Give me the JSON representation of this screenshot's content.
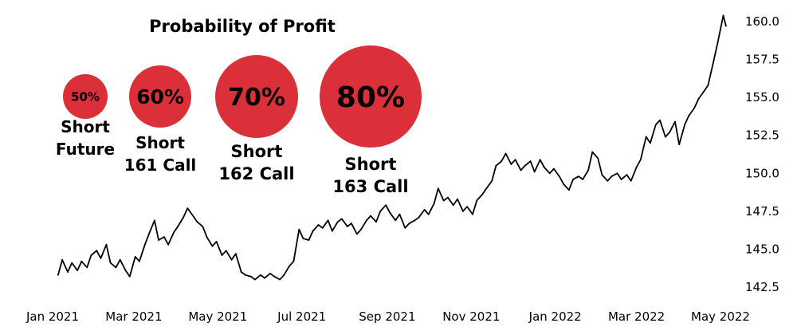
{
  "chart_data": {
    "type": "line",
    "title": "Probability of Profit",
    "xlabel": "",
    "ylabel": "",
    "ylim": [
      142.0,
      160.8
    ],
    "y_ticks": [
      "142.5",
      "145.0",
      "147.5",
      "150.0",
      "152.5",
      "155.0",
      "157.5",
      "160.0"
    ],
    "x_ticks": [
      "Jan 2021",
      "Mar 2021",
      "May 2021",
      "Jul 2021",
      "Sep 2021",
      "Nov 2021",
      "Jan 2022",
      "Mar 2022",
      "May 2022"
    ],
    "grid": false,
    "y_axis_side": "right",
    "line_color": "#000000",
    "series": [
      {
        "points": [
          [
            "2021-01-05",
            143.3
          ],
          [
            "2021-01-08",
            144.3
          ],
          [
            "2021-01-12",
            143.5
          ],
          [
            "2021-01-15",
            144.1
          ],
          [
            "2021-01-19",
            143.6
          ],
          [
            "2021-01-22",
            144.2
          ],
          [
            "2021-01-26",
            143.8
          ],
          [
            "2021-01-29",
            144.6
          ],
          [
            "2021-02-02",
            144.9
          ],
          [
            "2021-02-05",
            144.4
          ],
          [
            "2021-02-09",
            145.3
          ],
          [
            "2021-02-12",
            144.1
          ],
          [
            "2021-02-16",
            143.8
          ],
          [
            "2021-02-19",
            144.3
          ],
          [
            "2021-02-23",
            143.6
          ],
          [
            "2021-02-26",
            143.2
          ],
          [
            "2021-03-02",
            144.5
          ],
          [
            "2021-03-05",
            144.2
          ],
          [
            "2021-03-09",
            145.3
          ],
          [
            "2021-03-12",
            146.0
          ],
          [
            "2021-03-16",
            146.9
          ],
          [
            "2021-03-19",
            145.6
          ],
          [
            "2021-03-23",
            145.8
          ],
          [
            "2021-03-26",
            145.3
          ],
          [
            "2021-03-30",
            146.1
          ],
          [
            "2021-04-02",
            146.5
          ],
          [
            "2021-04-06",
            147.1
          ],
          [
            "2021-04-09",
            147.7
          ],
          [
            "2021-04-13",
            147.2
          ],
          [
            "2021-04-16",
            146.8
          ],
          [
            "2021-04-20",
            146.5
          ],
          [
            "2021-04-23",
            145.8
          ],
          [
            "2021-04-27",
            145.2
          ],
          [
            "2021-04-30",
            145.5
          ],
          [
            "2021-05-04",
            144.6
          ],
          [
            "2021-05-07",
            144.9
          ],
          [
            "2021-05-11",
            144.3
          ],
          [
            "2021-05-14",
            144.7
          ],
          [
            "2021-05-18",
            143.5
          ],
          [
            "2021-05-21",
            143.3
          ],
          [
            "2021-05-25",
            143.2
          ],
          [
            "2021-05-28",
            143.0
          ],
          [
            "2021-06-01",
            143.3
          ],
          [
            "2021-06-04",
            143.1
          ],
          [
            "2021-06-08",
            143.4
          ],
          [
            "2021-06-11",
            143.2
          ],
          [
            "2021-06-15",
            143.0
          ],
          [
            "2021-06-18",
            143.3
          ],
          [
            "2021-06-22",
            143.9
          ],
          [
            "2021-06-25",
            144.2
          ],
          [
            "2021-06-29",
            146.3
          ],
          [
            "2021-07-02",
            145.7
          ],
          [
            "2021-07-06",
            145.6
          ],
          [
            "2021-07-09",
            146.2
          ],
          [
            "2021-07-13",
            146.6
          ],
          [
            "2021-07-16",
            146.4
          ],
          [
            "2021-07-20",
            146.9
          ],
          [
            "2021-07-23",
            146.2
          ],
          [
            "2021-07-27",
            146.8
          ],
          [
            "2021-07-30",
            147.0
          ],
          [
            "2021-08-03",
            146.5
          ],
          [
            "2021-08-06",
            146.7
          ],
          [
            "2021-08-10",
            146.0
          ],
          [
            "2021-08-13",
            146.3
          ],
          [
            "2021-08-17",
            146.9
          ],
          [
            "2021-08-20",
            147.2
          ],
          [
            "2021-08-24",
            146.8
          ],
          [
            "2021-08-27",
            147.5
          ],
          [
            "2021-08-31",
            147.9
          ],
          [
            "2021-09-03",
            147.4
          ],
          [
            "2021-09-07",
            146.9
          ],
          [
            "2021-09-10",
            147.3
          ],
          [
            "2021-09-14",
            146.4
          ],
          [
            "2021-09-17",
            146.7
          ],
          [
            "2021-09-21",
            146.9
          ],
          [
            "2021-09-24",
            147.1
          ],
          [
            "2021-09-28",
            147.6
          ],
          [
            "2021-10-01",
            147.3
          ],
          [
            "2021-10-05",
            148.0
          ],
          [
            "2021-10-08",
            149.0
          ],
          [
            "2021-10-12",
            148.2
          ],
          [
            "2021-10-15",
            148.4
          ],
          [
            "2021-10-19",
            147.9
          ],
          [
            "2021-10-22",
            148.3
          ],
          [
            "2021-10-26",
            147.5
          ],
          [
            "2021-10-29",
            147.8
          ],
          [
            "2021-11-02",
            147.3
          ],
          [
            "2021-11-05",
            148.2
          ],
          [
            "2021-11-09",
            148.6
          ],
          [
            "2021-11-12",
            149.0
          ],
          [
            "2021-11-16",
            149.5
          ],
          [
            "2021-11-19",
            150.5
          ],
          [
            "2021-11-23",
            150.8
          ],
          [
            "2021-11-26",
            151.3
          ],
          [
            "2021-11-30",
            150.6
          ],
          [
            "2021-12-03",
            150.9
          ],
          [
            "2021-12-07",
            150.2
          ],
          [
            "2021-12-10",
            150.5
          ],
          [
            "2021-12-14",
            150.8
          ],
          [
            "2021-12-17",
            150.1
          ],
          [
            "2021-12-21",
            150.9
          ],
          [
            "2021-12-24",
            150.4
          ],
          [
            "2021-12-28",
            150.0
          ],
          [
            "2021-12-31",
            150.3
          ],
          [
            "2022-01-04",
            149.8
          ],
          [
            "2022-01-07",
            149.3
          ],
          [
            "2022-01-11",
            148.9
          ],
          [
            "2022-01-14",
            149.6
          ],
          [
            "2022-01-18",
            149.8
          ],
          [
            "2022-01-21",
            149.6
          ],
          [
            "2022-01-25",
            150.2
          ],
          [
            "2022-01-28",
            151.4
          ],
          [
            "2022-02-01",
            151.0
          ],
          [
            "2022-02-04",
            149.9
          ],
          [
            "2022-02-08",
            149.5
          ],
          [
            "2022-02-11",
            149.8
          ],
          [
            "2022-02-15",
            150.0
          ],
          [
            "2022-02-18",
            149.6
          ],
          [
            "2022-02-22",
            149.9
          ],
          [
            "2022-02-25",
            149.5
          ],
          [
            "2022-03-01",
            150.4
          ],
          [
            "2022-03-04",
            150.9
          ],
          [
            "2022-03-08",
            152.4
          ],
          [
            "2022-03-11",
            152.0
          ],
          [
            "2022-03-15",
            153.2
          ],
          [
            "2022-03-18",
            153.5
          ],
          [
            "2022-03-22",
            152.4
          ],
          [
            "2022-03-25",
            152.7
          ],
          [
            "2022-03-29",
            153.4
          ],
          [
            "2022-04-01",
            151.9
          ],
          [
            "2022-04-05",
            153.2
          ],
          [
            "2022-04-08",
            153.8
          ],
          [
            "2022-04-12",
            154.3
          ],
          [
            "2022-04-15",
            154.9
          ],
          [
            "2022-04-19",
            155.4
          ],
          [
            "2022-04-22",
            155.8
          ],
          [
            "2022-04-26",
            157.4
          ],
          [
            "2022-04-29",
            158.6
          ],
          [
            "2022-05-03",
            160.4
          ],
          [
            "2022-05-05",
            159.7
          ]
        ]
      }
    ],
    "bubbles": [
      {
        "pct": "50%",
        "lines": [
          "Short",
          "Future"
        ],
        "prob": 0.5,
        "color": "#db3039"
      },
      {
        "pct": "60%",
        "lines": [
          "Short",
          "161 Call"
        ],
        "prob": 0.6,
        "color": "#db3039"
      },
      {
        "pct": "70%",
        "lines": [
          "Short",
          "162 Call"
        ],
        "prob": 0.7,
        "color": "#db3039"
      },
      {
        "pct": "80%",
        "lines": [
          "Short",
          "163 Call"
        ],
        "prob": 0.8,
        "color": "#db3039"
      }
    ]
  }
}
